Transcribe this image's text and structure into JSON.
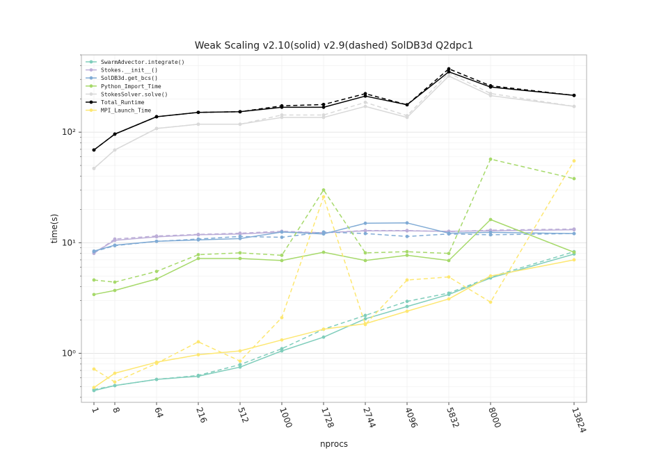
{
  "chart_data": {
    "type": "line",
    "title": "Weak Scaling v2.10(solid) v2.9(dashed) SolDB3d Q2dpc1",
    "xlabel": "nprocs",
    "ylabel": "time(s)",
    "x_scale": "cube-root",
    "y_scale": "log",
    "ylim": [
      0.36,
      500
    ],
    "grid": true,
    "legend_placement": "top-left",
    "x": [
      1,
      8,
      64,
      216,
      512,
      1000,
      1728,
      2744,
      4096,
      5832,
      8000,
      13824
    ],
    "x_tick_labels": [
      "1",
      "8",
      "64",
      "216",
      "512",
      "1000",
      "1728",
      "2744",
      "4096",
      "5832",
      "8000",
      "13824"
    ],
    "y_ticks": [
      1,
      10,
      100
    ],
    "y_tick_labels": [
      "10⁰",
      "10¹",
      "10²"
    ],
    "series": [
      {
        "name": "SwarmAdvector.integrate()",
        "color": "#7fcdbb",
        "solid": [
          0.46,
          0.51,
          0.58,
          0.62,
          0.75,
          1.05,
          1.4,
          2.05,
          2.65,
          3.4,
          4.8,
          7.9
        ],
        "dashed": [
          0.47,
          0.51,
          0.58,
          0.63,
          0.79,
          1.1,
          1.65,
          2.2,
          2.95,
          3.5,
          4.9,
          8.3
        ]
      },
      {
        "name": "Stokes.__init__()",
        "color": "#bcaed8",
        "solid": [
          8.1,
          10.5,
          11.3,
          11.8,
          12.0,
          12.5,
          12.3,
          12.8,
          12.8,
          12.7,
          12.8,
          13.1
        ],
        "dashed": [
          8.0,
          10.8,
          11.5,
          11.9,
          12.2,
          12.7,
          12.3,
          12.9,
          12.9,
          12.6,
          13.0,
          13.3
        ]
      },
      {
        "name": "SolDB3d.get_bcs()",
        "color": "#80abd5",
        "solid": [
          8.4,
          9.5,
          10.3,
          10.6,
          10.9,
          12.5,
          12.0,
          15.0,
          15.1,
          12.2,
          12.4,
          12.1
        ],
        "dashed": [
          8.3,
          9.4,
          10.3,
          10.8,
          11.4,
          11.2,
          12.5,
          12.1,
          11.4,
          12.0,
          11.8,
          12.1
        ]
      },
      {
        "name": "Python_Import_Time",
        "color": "#a6d96a",
        "solid": [
          3.4,
          3.7,
          4.7,
          7.2,
          7.2,
          6.9,
          8.2,
          6.9,
          7.7,
          6.9,
          16.2,
          8.2
        ],
        "dashed": [
          4.6,
          4.4,
          5.5,
          7.8,
          8.1,
          7.7,
          30.0,
          8.1,
          8.3,
          8.0,
          57.0,
          38.0
        ]
      },
      {
        "name": "StokesSolver.solve()",
        "color": "#d9d9d9",
        "solid": [
          47,
          69,
          108,
          118,
          118,
          136,
          136,
          171,
          136,
          322,
          214,
          171
        ],
        "dashed": [
          47,
          69,
          108,
          118,
          118,
          143,
          143,
          186,
          141,
          343,
          224,
          171
        ]
      },
      {
        "name": "Total_Runtime",
        "color": "#000000",
        "solid": [
          69,
          96,
          138,
          151,
          153,
          168,
          168,
          212,
          177,
          352,
          256,
          215
        ],
        "dashed": [
          69,
          96,
          138,
          151,
          153,
          173,
          178,
          223,
          177,
          374,
          263,
          215
        ]
      },
      {
        "name": "MPI_Launch_Time",
        "color": "#fde771",
        "solid": [
          0.49,
          0.66,
          0.83,
          0.97,
          1.05,
          1.32,
          1.65,
          1.85,
          2.4,
          3.1,
          5.0,
          7.0
        ],
        "dashed": [
          0.72,
          0.55,
          0.81,
          1.27,
          0.85,
          2.1,
          26.0,
          1.82,
          4.6,
          4.9,
          2.9,
          55.0
        ]
      }
    ]
  }
}
